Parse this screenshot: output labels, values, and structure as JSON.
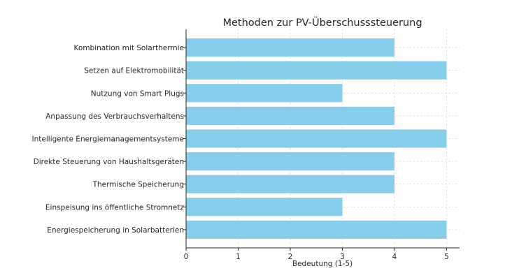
{
  "chart_data": {
    "type": "bar",
    "orientation": "horizontal",
    "title": "Methoden zur PV-Überschusssteuerung",
    "xlabel": "Bedeutung (1-5)",
    "ylabel": "",
    "categories": [
      "Energiespeicherung in Solarbatterien",
      "Einspeisung ins öffentliche Stromnetz",
      "Thermische Speicherung",
      "Direkte Steuerung von Haushaltsgeräten",
      "Intelligente Energiemanagementsysteme",
      "Anpassung des Verbrauchsverhaltens",
      "Nutzung von Smart Plugs",
      "Setzen auf Elektromobilität",
      "Kombination mit Solarthermie"
    ],
    "values": [
      5,
      3,
      4,
      4,
      5,
      4,
      3,
      5,
      4
    ],
    "xlim": [
      0,
      5.25
    ],
    "xticks": [
      "0",
      "1",
      "2",
      "3",
      "4",
      "5"
    ],
    "bar_color": "#87ceeb",
    "grid": true,
    "legend": "none"
  }
}
